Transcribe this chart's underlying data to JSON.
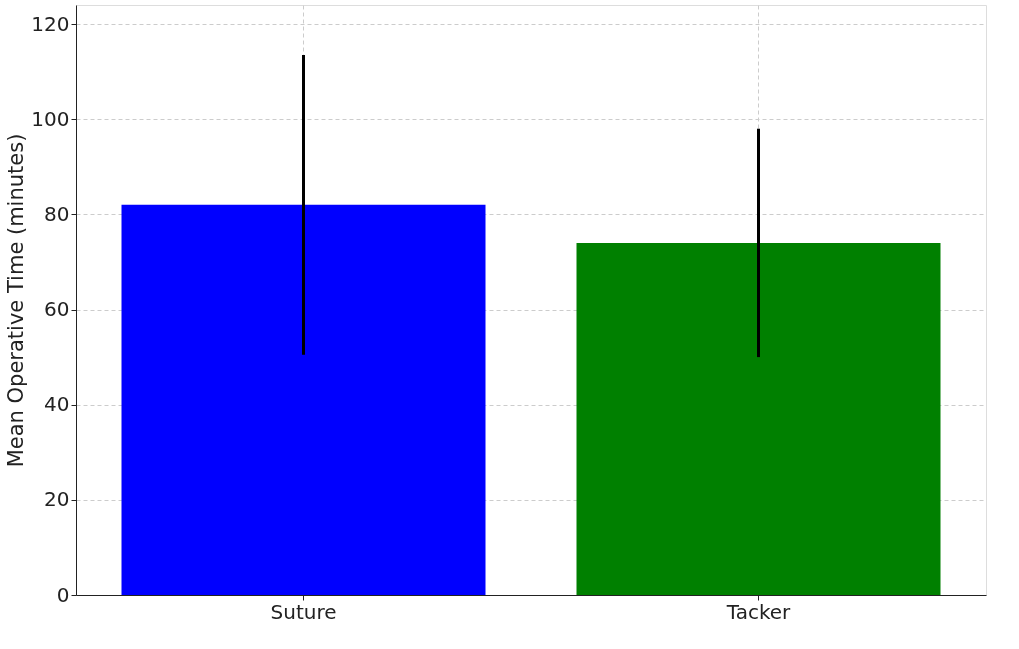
{
  "chart_data": {
    "type": "bar",
    "ylabel": "Mean Operative Time (minutes)",
    "categories": [
      "Suture",
      "Tacker"
    ],
    "values": [
      82,
      74
    ],
    "colors": [
      "#0000ff",
      "#008000"
    ],
    "errors": [
      31.5,
      24
    ],
    "ylim": [
      0,
      124
    ],
    "yticks": [
      0,
      20,
      40,
      60,
      80,
      100,
      120
    ],
    "grid": true
  }
}
